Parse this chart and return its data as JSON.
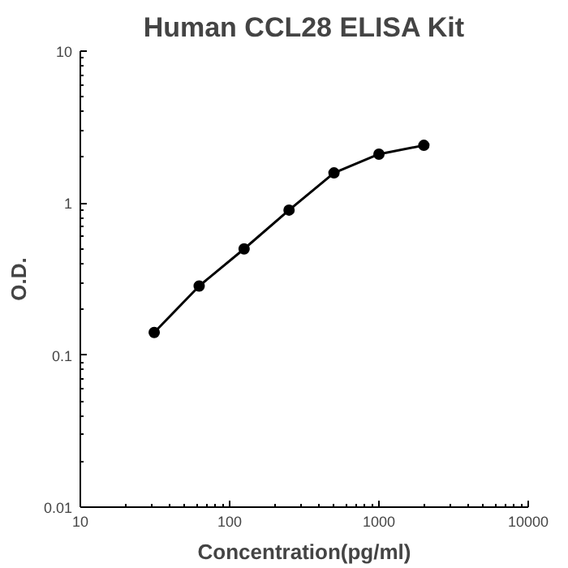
{
  "chart_data": {
    "type": "line",
    "title": "Human CCL28 ELISA Kit",
    "xlabel": "Concentration(pg/ml)",
    "ylabel": "O.D.",
    "log": "xy",
    "x": [
      31.25,
      62.5,
      125,
      250,
      500,
      1000,
      2000
    ],
    "series": [
      {
        "color": "#000000",
        "values": [
          0.141,
          0.285,
          0.5,
          0.9,
          1.58,
          2.1,
          2.4
        ]
      }
    ],
    "xlim": [
      10,
      10000
    ],
    "ylim": [
      0.01,
      10
    ],
    "xticks": [
      10,
      100,
      1000,
      10000
    ],
    "yticks": [
      0.01,
      0.1,
      1,
      10
    ],
    "marker": "circle",
    "line_style": "solid"
  }
}
